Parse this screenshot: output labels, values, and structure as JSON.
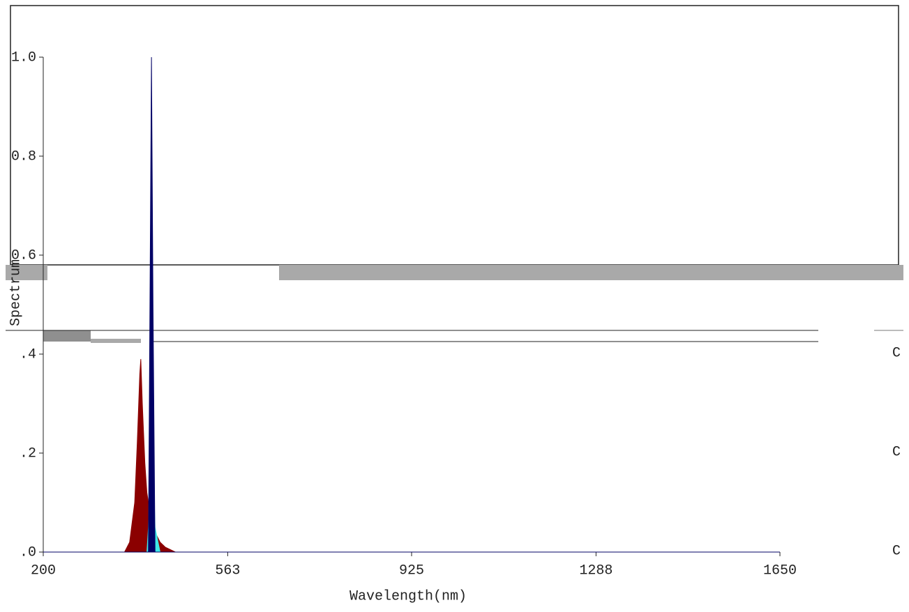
{
  "chart_data": {
    "type": "area",
    "y_label": "Spectrum",
    "x_label": "Wavelength(nm)",
    "x": [
      200,
      360,
      370,
      380,
      385,
      390,
      392,
      395,
      400,
      404,
      407,
      410,
      413,
      416,
      420,
      430,
      440,
      460,
      1650
    ],
    "series": [
      {
        "color": "#8b0000",
        "values": [
          0,
          0,
          0.02,
          0.1,
          0.22,
          0.36,
          0.39,
          0.3,
          0.18,
          0.12,
          0.1,
          0.08,
          0.07,
          0.06,
          0.04,
          0.02,
          0.01,
          0,
          0
        ]
      },
      {
        "color": "#40e8e8",
        "values": [
          0,
          0,
          0,
          0,
          0,
          0,
          0,
          0,
          0,
          0,
          0.05,
          0.2,
          0.36,
          0.2,
          0.05,
          0,
          0,
          0,
          0
        ]
      },
      {
        "color": "#000066",
        "values": [
          0,
          0,
          0,
          0,
          0,
          0,
          0,
          0,
          0,
          0,
          0,
          0.5,
          1.0,
          0.5,
          0,
          0,
          0,
          0,
          0
        ]
      }
    ],
    "xlim": [
      200,
      1650
    ],
    "xticks": [
      200,
      563,
      925,
      1288,
      1650
    ],
    "ylim": [
      0,
      1
    ],
    "yticks": [
      {
        "value": 0,
        "label": ".0"
      },
      {
        "value": 0.2,
        "label": ".2"
      },
      {
        "value": 0.4,
        "label": ".4"
      },
      {
        "value": 0.6,
        "label": "0.6"
      },
      {
        "value": 0.8,
        "label": "0.8"
      },
      {
        "value": 1,
        "label": "1.0"
      }
    ],
    "annotations": [
      "C",
      "C",
      "C"
    ]
  }
}
